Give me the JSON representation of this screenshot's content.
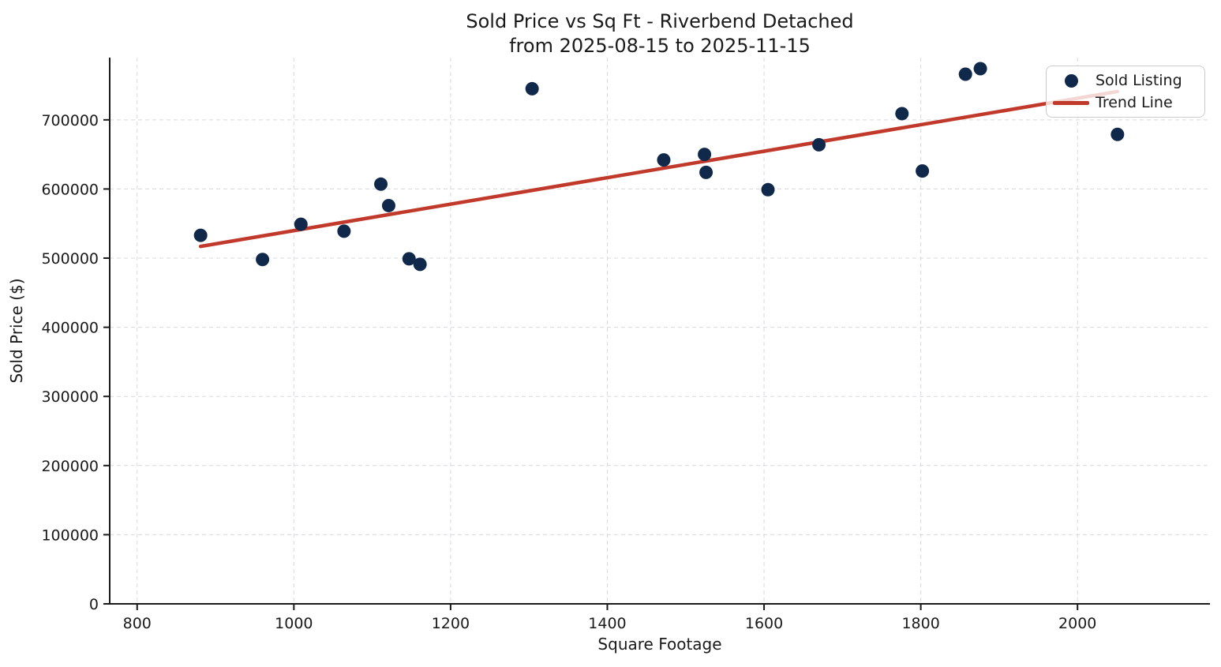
{
  "figure": {
    "title_line1": "Sold Price vs Sq Ft - Riverbend Detached",
    "title_line2": "from 2025-08-15 to 2025-11-15",
    "xlabel": "Square Footage",
    "ylabel": "Sold Price ($)"
  },
  "legend": {
    "items": [
      {
        "label": "Sold Listing",
        "sample": "dot"
      },
      {
        "label": "Trend Line",
        "sample": "line"
      }
    ]
  },
  "colors": {
    "dot": "#10294a",
    "trend": "#c0392b",
    "grid": "#d7dade",
    "axis": "#1a1a1a",
    "legend_border": "#cccccc"
  },
  "chart_data": {
    "type": "scatter",
    "title": "Sold Price vs Sq Ft - Riverbend Detached from 2025-08-15 to 2025-11-15",
    "xlabel": "Square Footage",
    "ylabel": "Sold Price ($)",
    "xlim": [
      765,
      2169
    ],
    "ylim": [
      0,
      790000
    ],
    "x_ticks": [
      800,
      1000,
      1200,
      1400,
      1600,
      1800,
      2000
    ],
    "y_ticks": [
      0,
      100000,
      200000,
      300000,
      400000,
      500000,
      600000,
      700000
    ],
    "grid": true,
    "legend_position": "upper right",
    "series": [
      {
        "name": "Sold Listing",
        "type": "scatter",
        "color": "#10294a",
        "points": [
          [
            881,
            533000
          ],
          [
            960,
            498000
          ],
          [
            1009,
            549000
          ],
          [
            1064,
            539000
          ],
          [
            1111,
            607000
          ],
          [
            1121,
            576000
          ],
          [
            1147,
            499000
          ],
          [
            1161,
            491000
          ],
          [
            1304,
            745000
          ],
          [
            1472,
            642000
          ],
          [
            1524,
            650000
          ],
          [
            1526,
            624000
          ],
          [
            1605,
            599000
          ],
          [
            1670,
            664000
          ],
          [
            1776,
            709000
          ],
          [
            1802,
            626000
          ],
          [
            1857,
            766000
          ],
          [
            1876,
            774000
          ],
          [
            2051,
            679000
          ]
        ]
      },
      {
        "name": "Trend Line",
        "type": "line",
        "color": "#c0392b",
        "points": [
          [
            881,
            517000
          ],
          [
            2051,
            741000
          ]
        ]
      }
    ]
  }
}
